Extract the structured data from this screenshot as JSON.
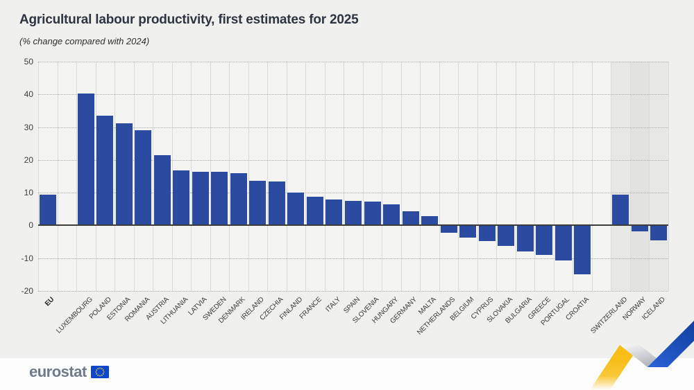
{
  "header": {
    "title": "Agricultural labour productivity, first estimates for 2025",
    "subtitle": "(% change compared with 2024)"
  },
  "chart_data": {
    "type": "bar",
    "title": "Agricultural labour productivity, first estimates for 2025",
    "subtitle": "(% change compared with 2024)",
    "ylabel": "% change compared with 2024",
    "xlabel": "",
    "ylim": [
      -20,
      50
    ],
    "yticks": [
      50,
      40,
      30,
      20,
      10,
      0,
      -10,
      -20
    ],
    "grid": "horizontal dotted gridlines, vertical column separators, dark solid zero line",
    "legend": "none",
    "bar_color": "#2a4ba0",
    "non_eu_shade_colors": [
      "#e7e7e5",
      "#e2e2e0",
      "#e7e7e5"
    ],
    "categories": [
      "EU",
      "LUXEMBOURG",
      "POLAND",
      "ESTONIA",
      "ROMANIA",
      "AUSTRIA",
      "LITHUANIA",
      "LATVIA",
      "SWEDEN",
      "DENMARK",
      "IRELAND",
      "CZECHIA",
      "FINLAND",
      "FRANCE",
      "ITALY",
      "SPAIN",
      "SLOVENIA",
      "HUNGARY",
      "GERMANY",
      "MALTA",
      "NETHERLANDS",
      "BELGIUM",
      "CYPRUS",
      "SLOVAKIA",
      "BULGARIA",
      "GREECE",
      "PORTUGAL",
      "CROATIA",
      "SWITZERLAND",
      "NORWAY",
      "ICELAND"
    ],
    "values": [
      9.3,
      40.2,
      33.6,
      31.1,
      29.0,
      21.4,
      16.9,
      16.4,
      16.3,
      15.9,
      13.7,
      13.4,
      10.1,
      8.7,
      8.0,
      7.5,
      7.3,
      6.5,
      4.4,
      2.8,
      -2.2,
      -3.7,
      -4.7,
      -6.2,
      -7.9,
      -8.9,
      -10.6,
      -14.9,
      9.3,
      -1.9,
      -4.6
    ],
    "groups": [
      "eu-aggregate",
      "eu-member",
      "eu-member",
      "eu-member",
      "eu-member",
      "eu-member",
      "eu-member",
      "eu-member",
      "eu-member",
      "eu-member",
      "eu-member",
      "eu-member",
      "eu-member",
      "eu-member",
      "eu-member",
      "eu-member",
      "eu-member",
      "eu-member",
      "eu-member",
      "eu-member",
      "eu-member",
      "eu-member",
      "eu-member",
      "eu-member",
      "eu-member",
      "eu-member",
      "eu-member",
      "eu-member",
      "non-eu",
      "non-eu",
      "non-eu"
    ],
    "gap_after": [
      "EU",
      "CROATIA"
    ]
  },
  "footer": {
    "logo_text": "eurostat"
  },
  "colors": {
    "page_background": "#f0f0ee",
    "plot_background": "#f4f4f3",
    "bar": "#2a4ba0",
    "zero_line": "#3c3c3c",
    "eurostat_logo_text": "#6e7b88",
    "eu_flag_blue": "#0e47cb",
    "eu_flag_stars": "#ffd617",
    "ribbon_yellow": "#f8be15",
    "ribbon_blue": "#1e50cf"
  }
}
